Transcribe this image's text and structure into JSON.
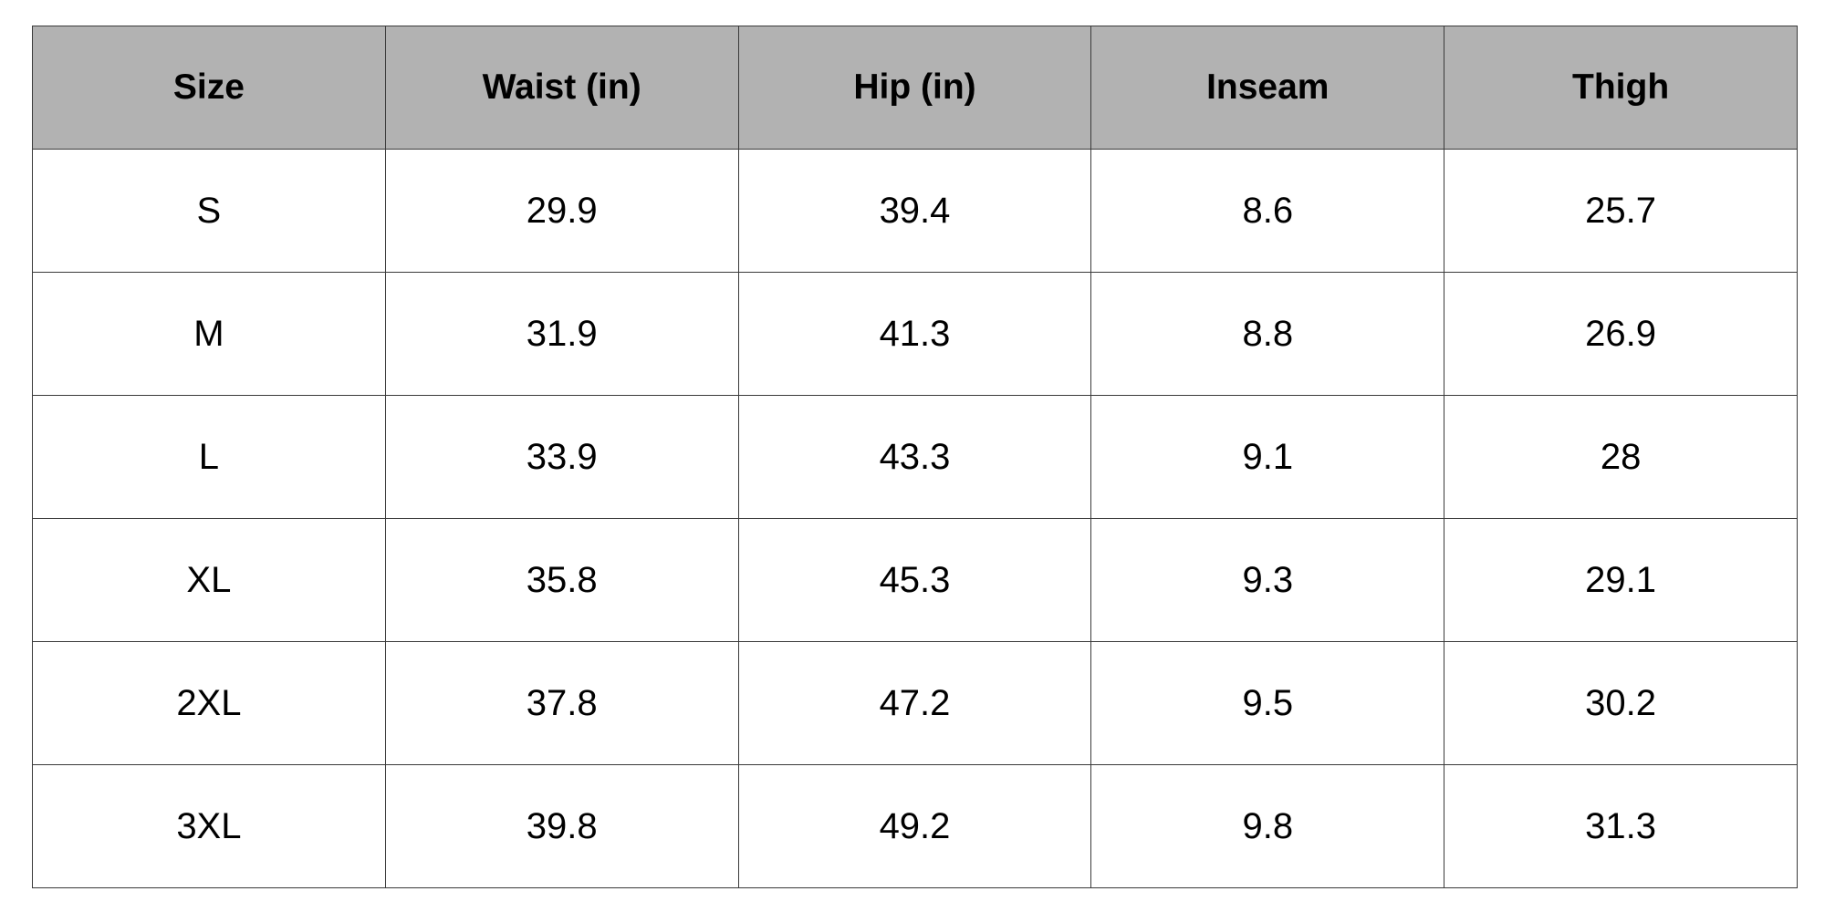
{
  "table": {
    "header_bg": "#b2b2b2",
    "columns": [
      "Size",
      "Waist (in)",
      "Hip (in)",
      "Inseam",
      "Thigh"
    ],
    "rows": [
      [
        "S",
        "29.9",
        "39.4",
        "8.6",
        "25.7"
      ],
      [
        "M",
        "31.9",
        "41.3",
        "8.8",
        "26.9"
      ],
      [
        "L",
        "33.9",
        "43.3",
        "9.1",
        "28"
      ],
      [
        "XL",
        "35.8",
        "45.3",
        "9.3",
        "29.1"
      ],
      [
        "2XL",
        "37.8",
        "47.2",
        "9.5",
        "30.2"
      ],
      [
        "3XL",
        "39.8",
        "49.2",
        "9.8",
        "31.3"
      ]
    ]
  }
}
